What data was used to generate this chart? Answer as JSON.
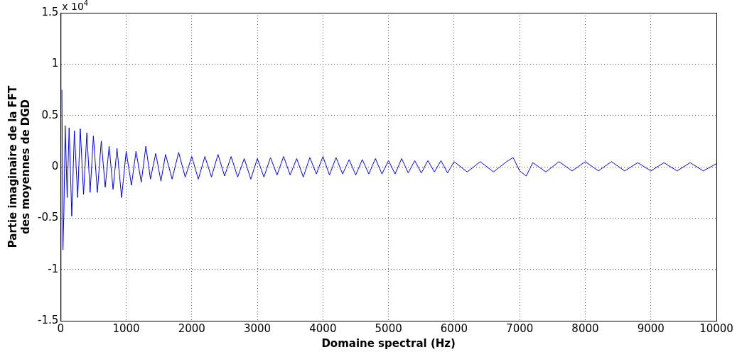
{
  "chart_data": {
    "type": "line",
    "xlabel": "Domaine spectral (Hz)",
    "ylabel": "Partie imaginaire de la FFT\ndes moyennes de DGD",
    "annotations": [
      "x 10$^{4}$"
    ],
    "xlim": [
      0,
      10000
    ],
    "xticks": [
      0,
      1000,
      2000,
      3000,
      4000,
      5000,
      6000,
      7000,
      8000,
      9000,
      10000
    ],
    "ylim": [
      -1.5,
      1.5
    ],
    "yticks": [
      -1.5,
      -1,
      -0.5,
      0,
      0.5,
      1,
      1.5
    ],
    "grid": true,
    "legend": false,
    "marker": "none",
    "line_style": "solid",
    "series": [
      {
        "color": "#0000ff",
        "x": [
          20,
          35,
          50,
          70,
          100,
          130,
          170,
          210,
          260,
          300,
          350,
          400,
          450,
          500,
          560,
          620,
          680,
          740,
          800,
          860,
          930,
          1000,
          1080,
          1150,
          1230,
          1300,
          1370,
          1450,
          1530,
          1600,
          1700,
          1800,
          1900,
          2000,
          2100,
          2200,
          2300,
          2400,
          2500,
          2600,
          2700,
          2800,
          2900,
          3000,
          3100,
          3200,
          3300,
          3400,
          3500,
          3600,
          3700,
          3800,
          3900,
          4000,
          4100,
          4200,
          4300,
          4400,
          4500,
          4600,
          4700,
          4800,
          4900,
          5000,
          5100,
          5200,
          5300,
          5400,
          5500,
          5600,
          5700,
          5800,
          5900,
          6000,
          6200,
          6400,
          6600,
          6800,
          6900,
          7000,
          7100,
          7200,
          7400,
          7600,
          7800,
          8000,
          8200,
          8400,
          8600,
          8800,
          9000,
          9200,
          9400,
          9600,
          9800,
          10000
        ],
        "values": [
          0.75,
          -0.81,
          -0.45,
          0.4,
          -0.3,
          0.38,
          -0.48,
          0.35,
          -0.3,
          0.37,
          -0.27,
          0.33,
          -0.25,
          0.3,
          -0.25,
          0.25,
          -0.2,
          0.2,
          -0.22,
          0.18,
          -0.3,
          0.15,
          -0.18,
          0.15,
          -0.15,
          0.2,
          -0.12,
          0.13,
          -0.14,
          0.12,
          -0.12,
          0.14,
          -0.1,
          0.1,
          -0.12,
          0.1,
          -0.1,
          0.12,
          -0.09,
          0.1,
          -0.1,
          0.08,
          -0.12,
          0.08,
          -0.1,
          0.09,
          -0.08,
          0.1,
          -0.08,
          0.08,
          -0.1,
          0.09,
          -0.07,
          0.1,
          -0.08,
          0.09,
          -0.07,
          0.07,
          -0.08,
          0.07,
          -0.07,
          0.08,
          -0.07,
          0.06,
          -0.07,
          0.08,
          -0.06,
          0.06,
          -0.06,
          0.06,
          -0.05,
          0.06,
          -0.06,
          0.05,
          -0.05,
          0.05,
          -0.05,
          0.05,
          0.09,
          -0.04,
          -0.09,
          0.04,
          -0.05,
          0.05,
          -0.04,
          0.05,
          -0.04,
          0.05,
          -0.04,
          0.04,
          -0.04,
          0.04,
          -0.04,
          0.04,
          -0.04,
          0.03
        ]
      }
    ]
  }
}
